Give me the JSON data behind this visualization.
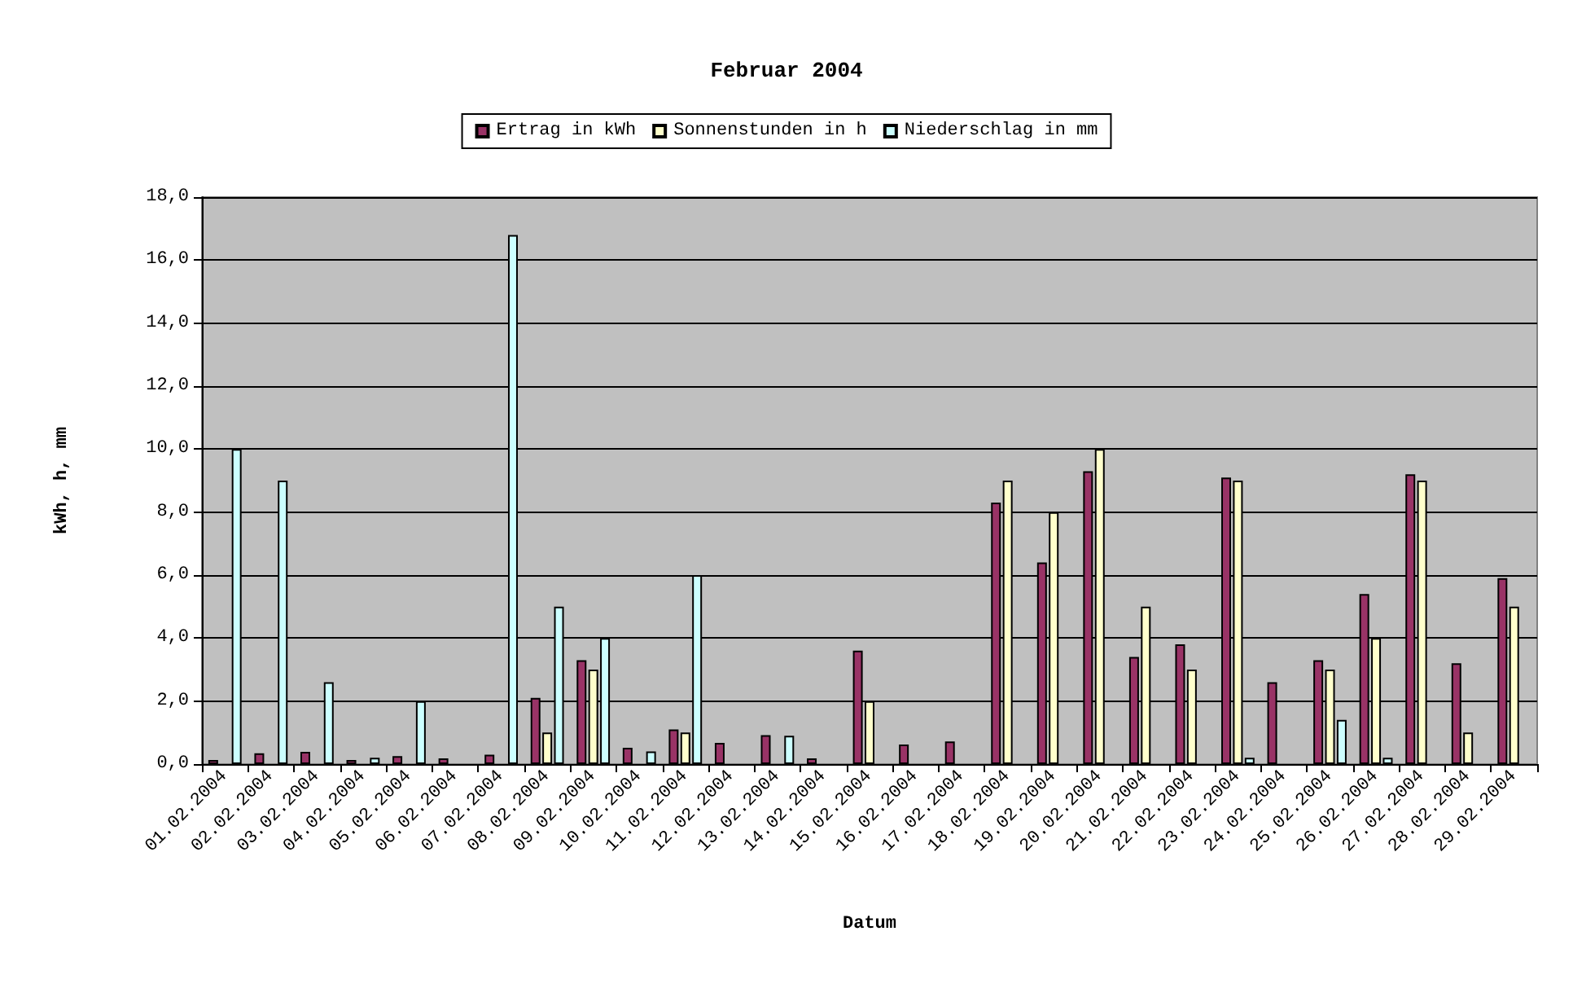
{
  "chart_data": {
    "type": "bar",
    "title": "Februar 2004",
    "xlabel": "Datum",
    "ylabel": "kWh, h, mm",
    "categories": [
      "01.02.2004",
      "02.02.2004",
      "03.02.2004",
      "04.02.2004",
      "05.02.2004",
      "06.02.2004",
      "07.02.2004",
      "08.02.2004",
      "09.02.2004",
      "10.02.2004",
      "11.02.2004",
      "12.02.2004",
      "13.02.2004",
      "14.02.2004",
      "15.02.2004",
      "16.02.2004",
      "17.02.2004",
      "18.02.2004",
      "19.02.2004",
      "20.02.2004",
      "21.02.2004",
      "22.02.2004",
      "23.02.2004",
      "24.02.2004",
      "25.02.2004",
      "26.02.2004",
      "27.02.2004",
      "28.02.2004",
      "29.02.2004"
    ],
    "series": [
      {
        "name": "Ertrag in kWh",
        "color": "#993366",
        "values": [
          0.13,
          0.34,
          0.39,
          0.13,
          0.25,
          0.18,
          0.3,
          2.1,
          3.3,
          0.52,
          1.1,
          0.67,
          0.92,
          0.18,
          3.6,
          0.62,
          0.72,
          8.3,
          6.4,
          9.3,
          3.4,
          3.8,
          9.1,
          2.6,
          3.3,
          5.4,
          9.2,
          3.2,
          5.9
        ]
      },
      {
        "name": "Sonnenstunden in h",
        "color": "#ffffcc",
        "values": [
          null,
          null,
          null,
          null,
          null,
          null,
          null,
          1.0,
          3.0,
          null,
          1.0,
          null,
          null,
          null,
          2.0,
          null,
          null,
          9.0,
          8.0,
          10.0,
          5.0,
          3.0,
          9.0,
          null,
          3.0,
          4.0,
          9.0,
          1.0,
          5.0
        ]
      },
      {
        "name": "Niederschlag in mm",
        "color": "#ccffff",
        "values": [
          10.0,
          9.0,
          2.6,
          0.2,
          2.0,
          null,
          16.8,
          5.0,
          4.0,
          0.4,
          6.0,
          null,
          0.9,
          null,
          null,
          null,
          null,
          null,
          null,
          null,
          null,
          null,
          0.2,
          null,
          1.4,
          0.2,
          null,
          null,
          null
        ]
      }
    ],
    "ylim": [
      0,
      18
    ],
    "yticks": [
      {
        "value": 0,
        "label": "0,0"
      },
      {
        "value": 2,
        "label": "2,0"
      },
      {
        "value": 4,
        "label": "4,0"
      },
      {
        "value": 6,
        "label": "6,0"
      },
      {
        "value": 8,
        "label": "8,0"
      },
      {
        "value": 10,
        "label": "10,0"
      },
      {
        "value": 12,
        "label": "12,0"
      },
      {
        "value": 14,
        "label": "14,0"
      },
      {
        "value": 16,
        "label": "16,0"
      },
      {
        "value": 18,
        "label": "18,0"
      }
    ],
    "grid": "y",
    "legend": "top"
  }
}
